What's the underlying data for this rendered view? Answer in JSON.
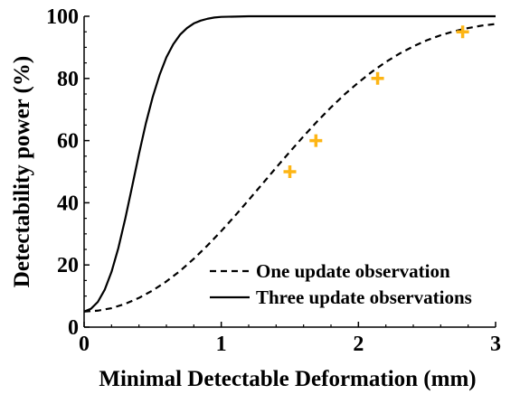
{
  "chart_data": {
    "type": "line",
    "xlabel": "Minimal Detectable Deformation (mm)",
    "ylabel": "Detectability power (%)",
    "xlim": [
      0,
      3
    ],
    "ylim": [
      0,
      100
    ],
    "xticks": [
      0,
      1,
      2,
      3
    ],
    "yticks": [
      0,
      20,
      40,
      60,
      80,
      100
    ],
    "x_tick_labels": [
      "0",
      "1",
      "2",
      "3"
    ],
    "y_tick_labels": [
      "0",
      "20",
      "40",
      "60",
      "80",
      "100"
    ],
    "grid": false,
    "legend_position": "bottom-right",
    "colors": {
      "lines": "#000000",
      "markers": "#FDB515"
    },
    "series": [
      {
        "name": "One update observation",
        "style": "dashed",
        "x": [
          0,
          0.1,
          0.2,
          0.3,
          0.4,
          0.5,
          0.6,
          0.7,
          0.8,
          0.9,
          1.0,
          1.1,
          1.2,
          1.3,
          1.4,
          1.5,
          1.6,
          1.7,
          1.8,
          1.9,
          2.0,
          2.1,
          2.2,
          2.3,
          2.4,
          2.5,
          2.6,
          2.7,
          2.8,
          2.9,
          3.0
        ],
        "y": [
          5,
          5.3,
          6.1,
          7.5,
          9.4,
          11.8,
          14.7,
          18.1,
          22,
          26.3,
          30.9,
          35.8,
          40.9,
          46.1,
          51.3,
          56.4,
          61.4,
          66.2,
          70.7,
          74.9,
          78.7,
          82.2,
          85.3,
          88,
          90.3,
          92.3,
          93.9,
          95.2,
          96.2,
          97,
          97.5
        ]
      },
      {
        "name": "Three update observations",
        "style": "solid",
        "x": [
          0,
          0.05,
          0.1,
          0.15,
          0.2,
          0.25,
          0.3,
          0.35,
          0.4,
          0.45,
          0.5,
          0.55,
          0.6,
          0.65,
          0.7,
          0.75,
          0.8,
          0.85,
          0.9,
          0.95,
          1.0,
          1.1,
          1.2,
          1.3,
          1.5,
          2.0,
          2.5,
          3.0
        ],
        "y": [
          5,
          5.9,
          8.1,
          12,
          17.8,
          25.5,
          34.9,
          45.2,
          55.7,
          65.5,
          74,
          81.1,
          86.8,
          91,
          94.1,
          96.2,
          97.7,
          98.6,
          99.2,
          99.6,
          99.8,
          99.9,
          100,
          100,
          100,
          100,
          100,
          100
        ]
      },
      {
        "style": "markers",
        "marker": "plus",
        "x": [
          1.5,
          1.69,
          2.14,
          2.76
        ],
        "y": [
          50,
          60,
          80,
          95
        ]
      }
    ]
  }
}
